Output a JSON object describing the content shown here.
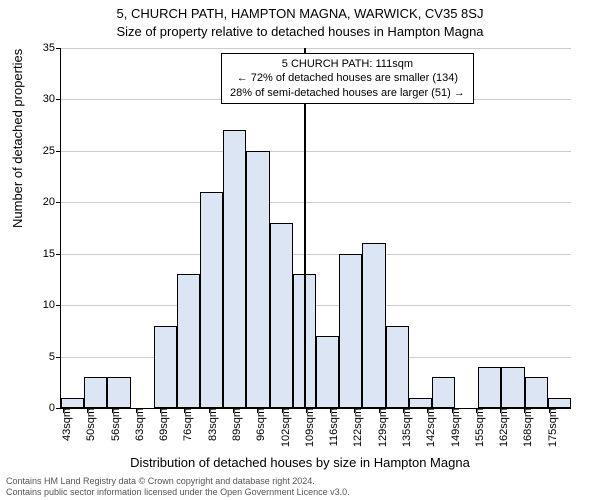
{
  "titles": {
    "main": "5, CHURCH PATH, HAMPTON MAGNA, WARWICK, CV35 8SJ",
    "sub": "Size of property relative to detached houses in Hampton Magna"
  },
  "axes": {
    "ylabel": "Number of detached properties",
    "xlabel": "Distribution of detached houses by size in Hampton Magna",
    "ylim": [
      0,
      35
    ],
    "yticks": [
      0,
      5,
      10,
      15,
      20,
      25,
      30,
      35
    ],
    "xticks": [
      "43sqm",
      "50sqm",
      "56sqm",
      "63sqm",
      "69sqm",
      "76sqm",
      "83sqm",
      "89sqm",
      "96sqm",
      "102sqm",
      "109sqm",
      "116sqm",
      "122sqm",
      "129sqm",
      "135sqm",
      "142sqm",
      "149sqm",
      "155sqm",
      "162sqm",
      "168sqm",
      "175sqm"
    ],
    "label_fontsize": 13,
    "tick_fontsize": 11
  },
  "chart": {
    "type": "histogram",
    "bar_color": "#dbe5f4",
    "bar_border": "#000000",
    "grid_color": "#cccccc",
    "background_color": "#ffffff",
    "values": [
      1,
      3,
      3,
      0,
      8,
      13,
      21,
      27,
      25,
      18,
      13,
      7,
      15,
      16,
      8,
      1,
      3,
      0,
      4,
      4,
      3,
      1
    ],
    "reference_line_index": 10.5,
    "reference_line_color": "#000000"
  },
  "annotation": {
    "line1": "5 CHURCH PATH: 111sqm",
    "line2": "← 72% of detached houses are smaller (134)",
    "line3": "28% of semi-detached houses are larger (51) →"
  },
  "footer": {
    "line1": "Contains HM Land Registry data © Crown copyright and database right 2024.",
    "line2": "Contains public sector information licensed under the Open Government Licence v3.0."
  }
}
